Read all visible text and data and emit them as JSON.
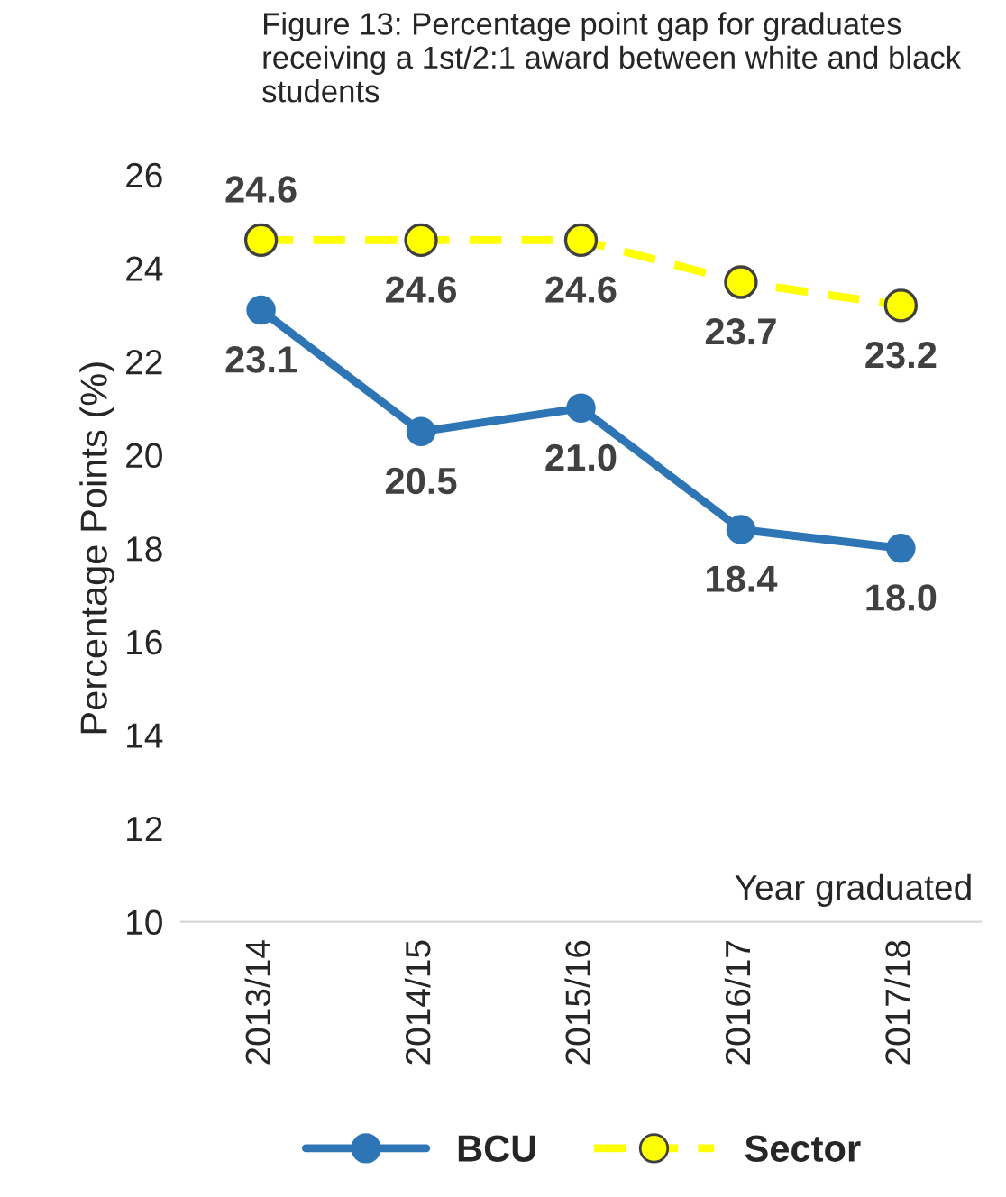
{
  "chart_data": {
    "type": "line",
    "title": "Figure 13: Percentage point gap for graduates receiving a 1st/2:1 award between white and black students",
    "xlabel": "Year graduated",
    "ylabel": "Percentage Points (%)",
    "categories": [
      "2013/14",
      "2014/15",
      "2015/16",
      "2016/17",
      "2017/18"
    ],
    "series": [
      {
        "name": "BCU",
        "color": "#2e75b6",
        "values": [
          23.1,
          20.5,
          21.0,
          18.4,
          18.0
        ],
        "value_labels": [
          "23.1",
          "20.5",
          "21.0",
          "18.4",
          "18.0"
        ],
        "marker": "circle",
        "line_style": "solid"
      },
      {
        "name": "Sector",
        "color": "#ffff00",
        "values": [
          24.6,
          24.6,
          24.6,
          23.7,
          23.2
        ],
        "value_labels": [
          "24.6",
          "24.6",
          "24.6",
          "23.7",
          "23.2"
        ],
        "marker": "circle",
        "line_style": "dashed"
      }
    ],
    "ylim": [
      10,
      26
    ],
    "yticks": [
      10,
      12,
      14,
      16,
      18,
      20,
      22,
      24,
      26
    ],
    "grid": false,
    "legend": "bottom"
  }
}
